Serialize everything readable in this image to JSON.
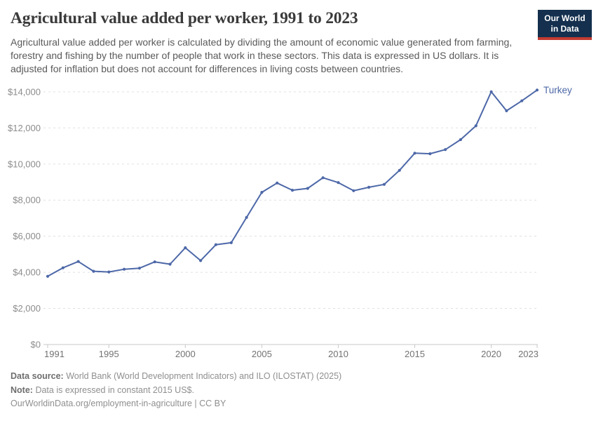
{
  "header": {
    "title": "Agricultural value added per worker, 1991 to 2023",
    "subtitle": "Agricultural value added per worker is calculated by dividing the amount of economic value generated from farming, forestry and fishing by the number of people that work in these sectors. This data is expressed in US dollars. It is adjusted for inflation but does not account for differences in living costs between countries.",
    "logo_line1": "Our World",
    "logo_line2": "in Data"
  },
  "chart_data": {
    "type": "line",
    "title": "Agricultural value added per worker, 1991 to 2023",
    "x": [
      1991,
      1992,
      1993,
      1994,
      1995,
      1996,
      1997,
      1998,
      1999,
      2000,
      2001,
      2002,
      2003,
      2004,
      2005,
      2006,
      2007,
      2008,
      2009,
      2010,
      2011,
      2012,
      2013,
      2014,
      2015,
      2016,
      2017,
      2018,
      2019,
      2020,
      2021,
      2022,
      2023
    ],
    "series": [
      {
        "name": "Turkey",
        "color": "#4d68a8",
        "values": [
          3780,
          4250,
          4600,
          4060,
          4020,
          4170,
          4230,
          4580,
          4450,
          5360,
          4650,
          5530,
          5640,
          7040,
          8430,
          8950,
          8550,
          8650,
          9240,
          8970,
          8520,
          8710,
          8870,
          9650,
          10600,
          10570,
          10800,
          11350,
          12120,
          14000,
          12950,
          13500,
          14100
        ]
      }
    ],
    "xlim": [
      1991,
      2023
    ],
    "ylim": [
      0,
      14000
    ],
    "x_ticks": [
      1991,
      1995,
      2000,
      2005,
      2010,
      2015,
      2020,
      2023
    ],
    "y_ticks": [
      0,
      2000,
      4000,
      6000,
      8000,
      10000,
      12000,
      14000
    ],
    "y_tick_prefix": "$",
    "grid": "horizontal-dashed",
    "legend_position": "end-of-line",
    "end_label": "Turkey"
  },
  "colors": {
    "line": "#4d68a8",
    "grid": "#e0e0e0",
    "axis": "#c8c8c8",
    "y_label": "#8c8c8c",
    "x_label": "#737373",
    "logo_bg": "#14304e",
    "logo_stripe": "#c23b32"
  },
  "footer": {
    "source_label": "Data source:",
    "source_text": "World Bank (World Development Indicators) and ILO (ILOSTAT) (2025)",
    "note_label": "Note:",
    "note_text": "Data is expressed in constant 2015 US$.",
    "url": "OurWorldinData.org/employment-in-agriculture",
    "separator": "|",
    "license": "CC BY"
  }
}
